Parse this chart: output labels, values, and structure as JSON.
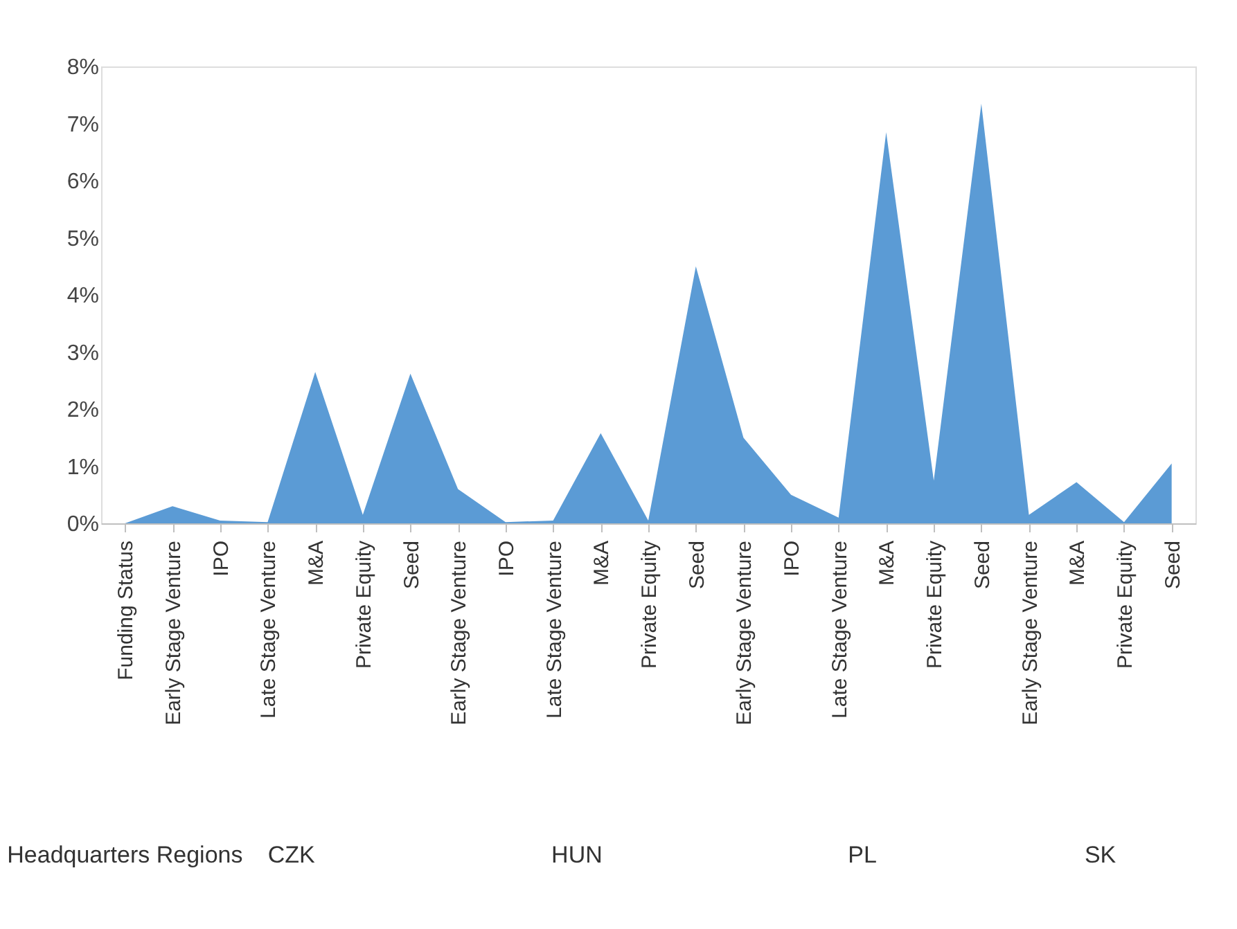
{
  "chart_data": {
    "type": "area",
    "categories": [
      "Funding Status",
      "Early Stage Venture",
      "IPO",
      "Late Stage Venture",
      "M&A",
      "Private Equity",
      "Seed",
      "Early Stage Venture",
      "IPO",
      "Late Stage Venture",
      "M&A",
      "Private Equity",
      "Seed",
      "Early Stage Venture",
      "IPO",
      "Late Stage Venture",
      "M&A",
      "Private Equity",
      "Seed",
      "Early Stage Venture",
      "M&A",
      "Private Equity",
      "Seed"
    ],
    "series": [
      {
        "color": "#5b9bd5",
        "values": [
          0,
          0.3,
          0.05,
          0.02,
          2.65,
          0.15,
          2.62,
          0.6,
          0.02,
          0.05,
          1.58,
          0.05,
          4.5,
          1.5,
          0.5,
          0.1,
          6.85,
          0.75,
          7.35,
          0.15,
          0.72,
          0.02,
          1.05
        ]
      }
    ],
    "ylim": [
      0,
      8
    ],
    "yticks": [
      {
        "value": 0,
        "label": "0%"
      },
      {
        "value": 1,
        "label": "1%"
      },
      {
        "value": 2,
        "label": "2%"
      },
      {
        "value": 3,
        "label": "3%"
      },
      {
        "value": 4,
        "label": "4%"
      },
      {
        "value": 5,
        "label": "5%"
      },
      {
        "value": 6,
        "label": "6%"
      },
      {
        "value": 7,
        "label": "7%"
      },
      {
        "value": 8,
        "label": "8%"
      }
    ],
    "annotations": [
      "Headquarters Regions",
      "CZK",
      "HUN",
      "PL",
      "SK"
    ],
    "grid": false
  }
}
